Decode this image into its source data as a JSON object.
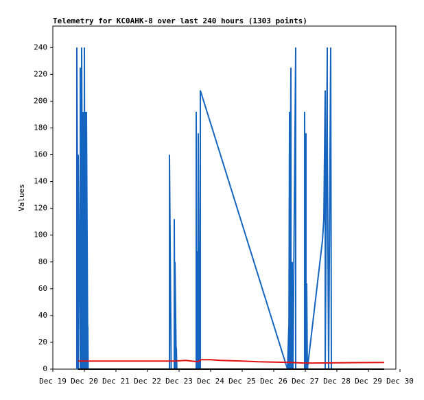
{
  "chart_data": {
    "type": "line",
    "title": "Telemetry for KC0AHK-8 over last 240 hours (1303 points)",
    "ylabel": "Values",
    "xlim": [
      19,
      30
    ],
    "ylim": [
      0,
      256
    ],
    "xticks": [
      {
        "value": 19,
        "label": "Dec 19"
      },
      {
        "value": 20,
        "label": "Dec 20"
      },
      {
        "value": 21,
        "label": "Dec 21"
      },
      {
        "value": 22,
        "label": "Dec 22"
      },
      {
        "value": 23,
        "label": "Dec 23"
      },
      {
        "value": 24,
        "label": "Dec 24"
      },
      {
        "value": 25,
        "label": "Dec 25"
      },
      {
        "value": 26,
        "label": "Dec 26"
      },
      {
        "value": 27,
        "label": "Dec 27"
      },
      {
        "value": 28,
        "label": "Dec 28"
      },
      {
        "value": 29,
        "label": "Dec 29"
      },
      {
        "value": 30,
        "label": "Dec 30"
      }
    ],
    "yticks": [
      0,
      20,
      40,
      60,
      80,
      100,
      120,
      140,
      160,
      180,
      200,
      220,
      240
    ],
    "series": [
      {
        "color": "#1565c0",
        "x": [
          19.761,
          19.761,
          19.804,
          19.804,
          19.87,
          19.87,
          19.913,
          19.913,
          19.957,
          19.957,
          20.0,
          20.0,
          20.022,
          20.022,
          20.065,
          20.065,
          20.109,
          20.109,
          20.12,
          22.696,
          22.696,
          22.75,
          22.848,
          22.848,
          22.87,
          22.87,
          22.913,
          22.913,
          22.93,
          23.543,
          23.543,
          23.565,
          23.565,
          23.609,
          23.609,
          23.652,
          23.652,
          23.674,
          23.674,
          26.435,
          26.478,
          26.478,
          26.5,
          26.5,
          26.543,
          26.543,
          26.587,
          26.587,
          26.609,
          26.609,
          26.696,
          26.696,
          26.978,
          26.978,
          27.0,
          27.022,
          27.022,
          27.043,
          27.065,
          27.543,
          27.587,
          27.63,
          27.63,
          27.696,
          27.696,
          27.739,
          27.804,
          27.826
        ],
        "values": [
          0,
          240,
          0,
          160,
          0,
          225,
          0,
          240,
          0,
          192,
          0,
          240,
          0,
          192,
          0,
          192,
          0,
          32,
          0,
          0,
          160,
          0,
          0,
          112,
          0,
          80,
          0,
          16,
          0,
          0,
          192,
          0,
          88,
          0,
          176,
          0,
          48,
          0,
          208,
          0,
          32,
          0,
          192,
          0,
          225,
          0,
          80,
          0,
          32,
          0,
          240,
          0,
          0,
          192,
          0,
          176,
          0,
          64,
          0,
          96,
          112,
          208,
          0,
          240,
          176,
          0,
          240,
          0
        ]
      },
      {
        "color": "#e01010",
        "x": [
          19.8,
          22.9,
          23.2,
          23.6,
          23.7,
          24.0,
          24.3,
          25.0,
          25.5,
          26.5,
          27.0,
          29.5
        ],
        "values": [
          6,
          6,
          6.5,
          5.5,
          7,
          7,
          6.5,
          6,
          5.5,
          5,
          4.5,
          5
        ]
      },
      {
        "color": "#000000",
        "x": [
          19.8,
          29.5
        ],
        "values": [
          0,
          0
        ]
      }
    ]
  }
}
